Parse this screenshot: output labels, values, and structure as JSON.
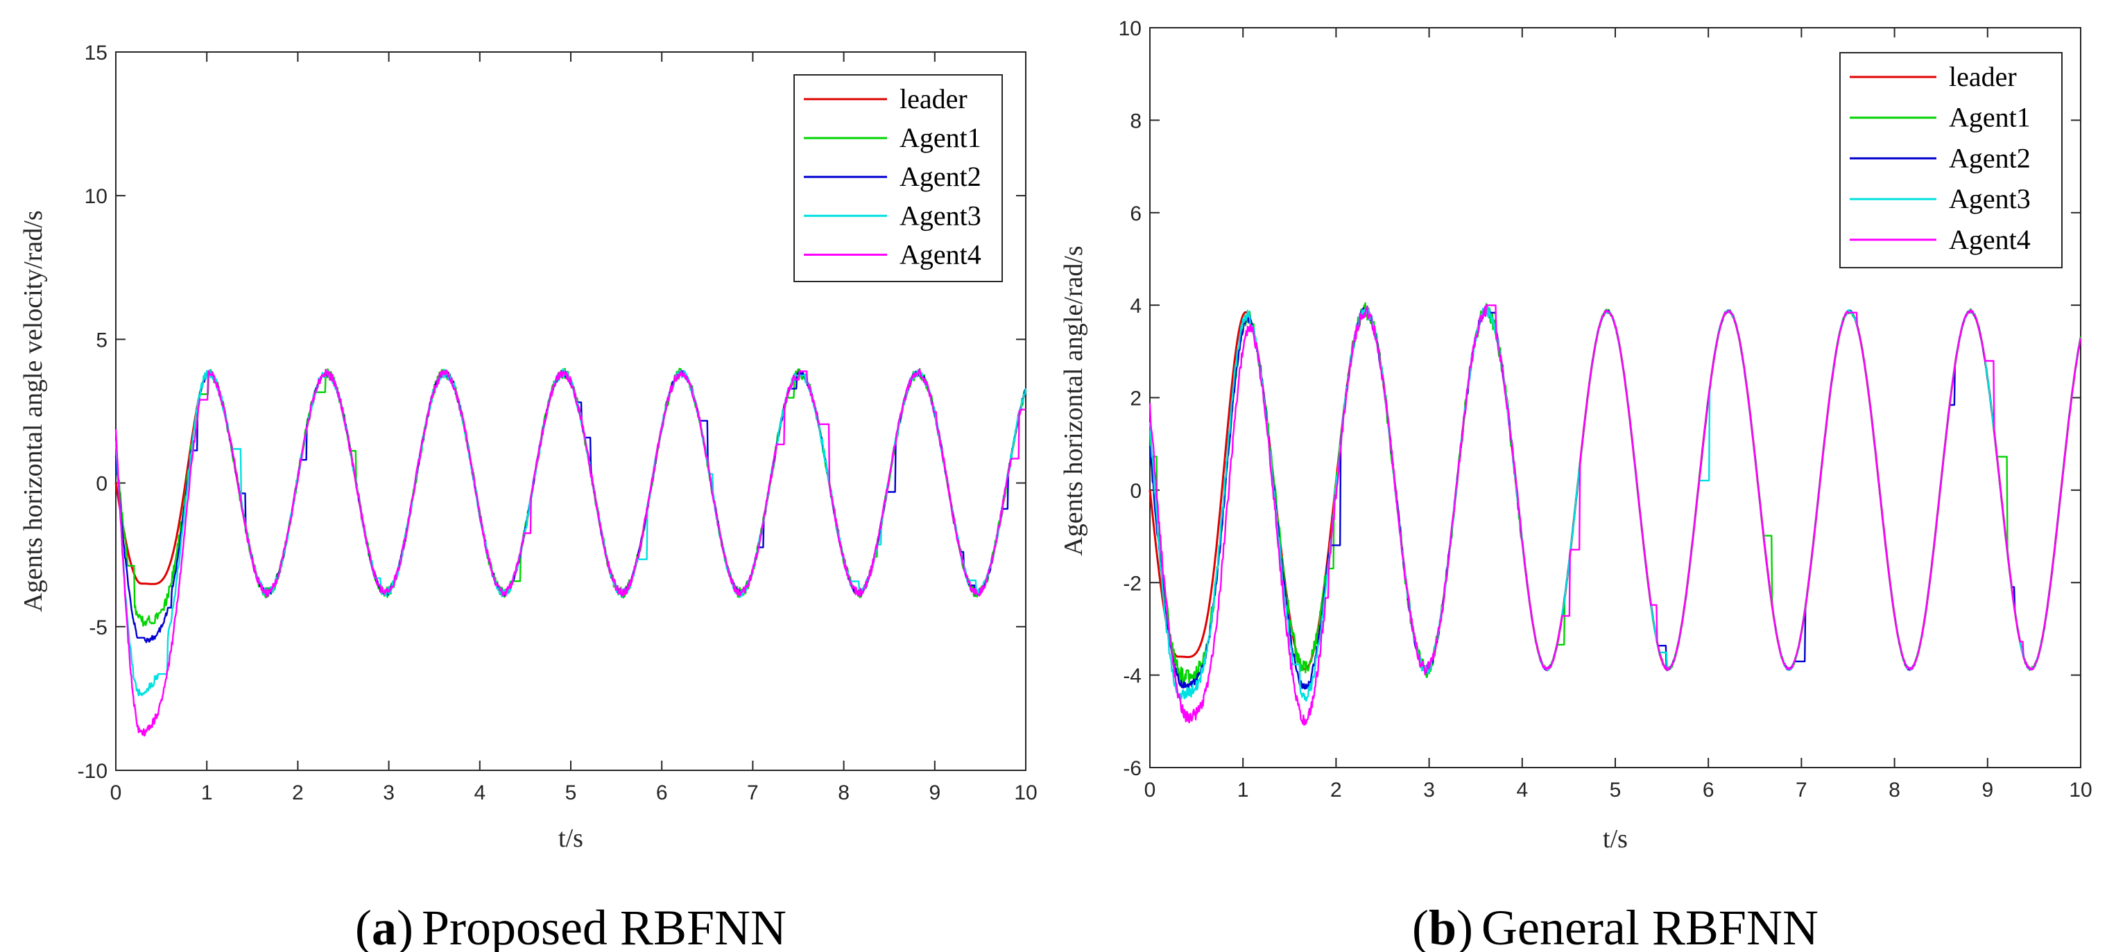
{
  "chart_data": [
    {
      "type": "line",
      "caption_letter": "a",
      "caption_text": "Proposed RBFNN",
      "caption_open": "(",
      "caption_close": ")",
      "xlabel": "t/s",
      "ylabel": "Agents horizontal angle velocity/rad/s",
      "xlim": [
        0,
        10
      ],
      "ylim": [
        -10,
        15
      ],
      "xticks": [
        "0",
        "1",
        "2",
        "3",
        "4",
        "5",
        "6",
        "7",
        "8",
        "9",
        "10"
      ],
      "yticks": [
        "-10",
        "-5",
        "0",
        "5",
        "10",
        "15"
      ],
      "legend_position": "top-right",
      "leader": {
        "amplitude": 3.9,
        "period": 1.3,
        "initial_value": 0
      },
      "series": [
        {
          "name": "leader",
          "color": "#e00000",
          "peak": -3.5,
          "peak_t": 0.28,
          "noise": 0.0
        },
        {
          "name": "Agent1",
          "color": "#00d400",
          "peak": -4.8,
          "peak_t": 0.28,
          "noise": 0.18
        },
        {
          "name": "Agent2",
          "color": "#0000d0",
          "peak": -5.5,
          "peak_t": 0.28,
          "noise": 0.1
        },
        {
          "name": "Agent3",
          "color": "#00e0e0",
          "peak": -7.3,
          "peak_t": 0.26,
          "noise": 0.15
        },
        {
          "name": "Agent4",
          "color": "#ff00ff",
          "peak": -8.7,
          "peak_t": 0.28,
          "noise": 0.14
        }
      ]
    },
    {
      "type": "line",
      "caption_letter": "b",
      "caption_text": "General RBFNN",
      "caption_open": "(",
      "caption_close": ")",
      "xlabel": "t/s",
      "ylabel": "Agents horizontal angle/rad/s",
      "xlim": [
        0,
        10
      ],
      "ylim": [
        -6,
        10
      ],
      "xticks": [
        "0",
        "1",
        "2",
        "3",
        "4",
        "5",
        "6",
        "7",
        "8",
        "9",
        "10"
      ],
      "yticks": [
        "-6",
        "-4",
        "-2",
        "0",
        "2",
        "4",
        "6",
        "8",
        "10"
      ],
      "legend_position": "top-right",
      "leader": {
        "amplitude": 3.95,
        "period": 1.3,
        "initial_value": 0
      },
      "series": [
        {
          "name": "leader",
          "color": "#e00000",
          "peak": -3.6,
          "peak_t": 0.3,
          "noise": 0.0
        },
        {
          "name": "Agent1",
          "color": "#00d400",
          "peak": -4.0,
          "peak_t": 0.35,
          "noise": 0.18
        },
        {
          "name": "Agent2",
          "color": "#0000d0",
          "peak": -4.2,
          "peak_t": 0.35,
          "noise": 0.1
        },
        {
          "name": "Agent3",
          "color": "#00e0e0",
          "peak": -4.4,
          "peak_t": 0.33,
          "noise": 0.12
        },
        {
          "name": "Agent4",
          "color": "#ff00ff",
          "peak": -4.9,
          "peak_t": 0.4,
          "noise": 0.13
        }
      ]
    }
  ]
}
